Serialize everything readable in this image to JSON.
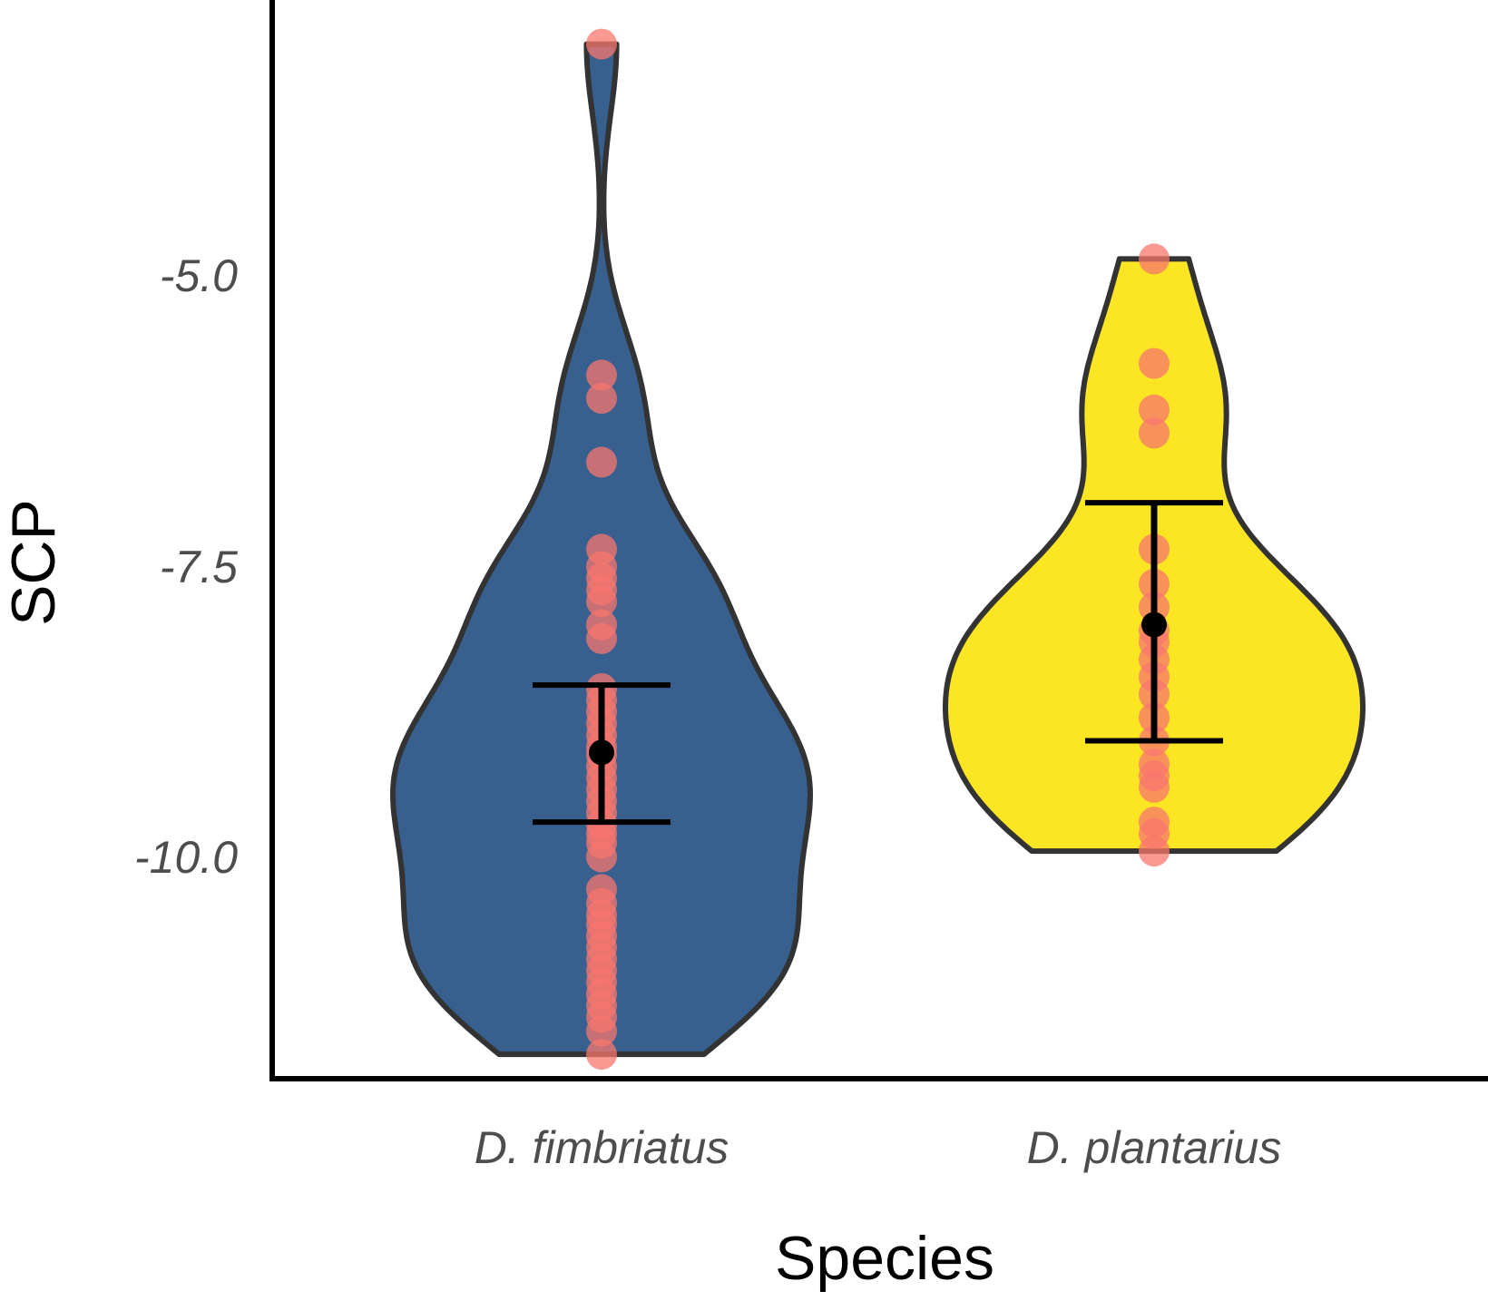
{
  "chart_data": {
    "type": "violin",
    "xlabel": "Species",
    "ylabel": "SCP",
    "ylim": [
      -11.41,
      -2.12
    ],
    "yticks": [
      {
        "value": -5.0,
        "label": "-5.0"
      },
      {
        "value": -7.5,
        "label": "-7.5"
      },
      {
        "value": -10.0,
        "label": "-10.0"
      }
    ],
    "categories": [
      "D. fimbriatus",
      "D. plantarius"
    ],
    "grid": false,
    "legend": "none",
    "series": [
      {
        "category": "D. fimbriatus",
        "fill_color": "#37608f",
        "outline_color": "#333333",
        "point_color": "#f8766d",
        "min": -11.2,
        "max": -2.5,
        "mean": -8.6,
        "error_low": -9.2,
        "error_high": -8.02,
        "points": [
          -2.5,
          -5.35,
          -5.55,
          -6.1,
          -6.85,
          -7.0,
          -7.1,
          -7.2,
          -7.3,
          -7.5,
          -7.62,
          -8.05,
          -8.15,
          -8.25,
          -8.35,
          -8.45,
          -8.55,
          -8.62,
          -8.72,
          -8.82,
          -8.92,
          -9.02,
          -9.12,
          -9.22,
          -9.3,
          -9.38,
          -9.5,
          -9.78,
          -9.9,
          -10.0,
          -10.08,
          -10.18,
          -10.28,
          -10.38,
          -10.48,
          -10.58,
          -10.68,
          -10.78,
          -10.88,
          -11.0,
          -11.2
        ]
      },
      {
        "category": "D. plantarius",
        "fill_color": "#fce523",
        "outline_color": "#333333",
        "point_color": "#f8766d",
        "min": -9.45,
        "max": -4.35,
        "mean": -7.5,
        "error_low": -8.5,
        "error_high": -6.45,
        "points": [
          -4.35,
          -5.25,
          -5.65,
          -5.85,
          -6.85,
          -7.15,
          -7.35,
          -7.55,
          -7.65,
          -7.8,
          -7.95,
          -8.1,
          -8.3,
          -8.5,
          -8.7,
          -8.8,
          -8.9,
          -9.2,
          -9.3,
          -9.45
        ]
      }
    ]
  }
}
